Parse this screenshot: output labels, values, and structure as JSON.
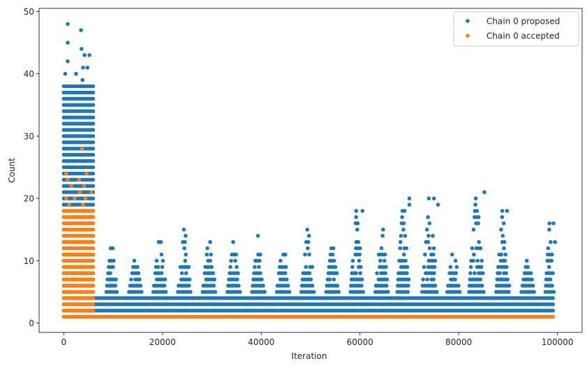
{
  "chart_data": {
    "type": "scatter",
    "xlabel": "Iteration",
    "ylabel": "Count",
    "xlim": [
      -5000,
      105000
    ],
    "ylim": [
      -1.5,
      50.5
    ],
    "xticks": [
      0,
      20000,
      40000,
      60000,
      80000,
      100000
    ],
    "xtick_labels": [
      "0",
      "20000",
      "40000",
      "60000",
      "80000",
      "100000"
    ],
    "yticks": [
      0,
      10,
      20,
      30,
      40,
      50
    ],
    "ytick_labels": [
      "0",
      "10",
      "20",
      "30",
      "40",
      "50"
    ],
    "grid": false,
    "legend_position": "top-right",
    "series": [
      {
        "name": "Chain 0 proposed",
        "color": "#1f77b4",
        "bands": [
          {
            "x": [
              0,
              6200
            ],
            "y": [
              1,
              38
            ],
            "step": 1
          },
          {
            "x": [
              6200,
              99500
            ],
            "y": [
              1,
              4
            ],
            "step": 1
          }
        ],
        "bursts": [
          {
            "x": [
              8500,
              11000
            ],
            "y_max": 13
          },
          {
            "x": [
              13000,
              16000
            ],
            "y_max": 10
          },
          {
            "x": [
              18000,
              21000
            ],
            "y_max": 14
          },
          {
            "x": [
              23000,
              26000
            ],
            "y_max": 15
          },
          {
            "x": [
              28000,
              31000
            ],
            "y_max": 14
          },
          {
            "x": [
              33000,
              36000
            ],
            "y_max": 13
          },
          {
            "x": [
              38000,
              41000
            ],
            "y_max": 14
          },
          {
            "x": [
              43000,
              46000
            ],
            "y_max": 13
          },
          {
            "x": [
              48000,
              51000
            ],
            "y_max": 15
          },
          {
            "x": [
              53000,
              56000
            ],
            "y_max": 13
          },
          {
            "x": [
              58000,
              60800
            ],
            "y_max": 18
          },
          {
            "x": [
              63000,
              66000
            ],
            "y_max": 16
          },
          {
            "x": [
              67500,
              70200
            ],
            "y_max": 20
          },
          {
            "x": [
              72500,
              75800
            ],
            "y_max": 20
          },
          {
            "x": [
              77500,
              80500
            ],
            "y_max": 12
          },
          {
            "x": [
              82000,
              85300
            ],
            "y_max": 21
          },
          {
            "x": [
              87500,
              90500
            ],
            "y_max": 18
          },
          {
            "x": [
              92500,
              95500
            ],
            "y_max": 10
          },
          {
            "x": [
              97500,
              99500
            ],
            "y_max": 16
          }
        ],
        "outliers": [
          {
            "x": 800,
            "y": 48
          },
          {
            "x": 3500,
            "y": 47
          },
          {
            "x": 800,
            "y": 45
          },
          {
            "x": 3600,
            "y": 44
          },
          {
            "x": 4200,
            "y": 43
          },
          {
            "x": 5200,
            "y": 43
          },
          {
            "x": 800,
            "y": 42
          },
          {
            "x": 3900,
            "y": 41
          },
          {
            "x": 4800,
            "y": 41
          },
          {
            "x": 300,
            "y": 40
          },
          {
            "x": 2500,
            "y": 40
          },
          {
            "x": 3800,
            "y": 39
          },
          {
            "x": 60500,
            "y": 18
          },
          {
            "x": 89800,
            "y": 18
          },
          {
            "x": 85200,
            "y": 21
          },
          {
            "x": 70000,
            "y": 20
          },
          {
            "x": 75000,
            "y": 20
          },
          {
            "x": 70000,
            "y": 19
          },
          {
            "x": 75800,
            "y": 19
          },
          {
            "x": 99200,
            "y": 16
          },
          {
            "x": 99500,
            "y": 13
          }
        ]
      },
      {
        "name": "Chain 0 accepted",
        "color": "#ff7f0e",
        "bands": [
          {
            "x": [
              0,
              6200
            ],
            "y": [
              1,
              18
            ],
            "step": 1
          },
          {
            "x": [
              6200,
              99500
            ],
            "y": [
              1,
              1
            ],
            "step": 1
          }
        ],
        "outliers": [
          {
            "x": 3700,
            "y": 28
          },
          {
            "x": 500,
            "y": 24
          },
          {
            "x": 4600,
            "y": 24
          },
          {
            "x": 800,
            "y": 23
          },
          {
            "x": 3100,
            "y": 23
          },
          {
            "x": 1500,
            "y": 22
          },
          {
            "x": 4100,
            "y": 22
          },
          {
            "x": 3300,
            "y": 21
          },
          {
            "x": 5600,
            "y": 21
          },
          {
            "x": 500,
            "y": 20
          },
          {
            "x": 2200,
            "y": 20
          },
          {
            "x": 4400,
            "y": 20
          },
          {
            "x": 1100,
            "y": 19
          },
          {
            "x": 3900,
            "y": 19
          }
        ]
      }
    ]
  }
}
